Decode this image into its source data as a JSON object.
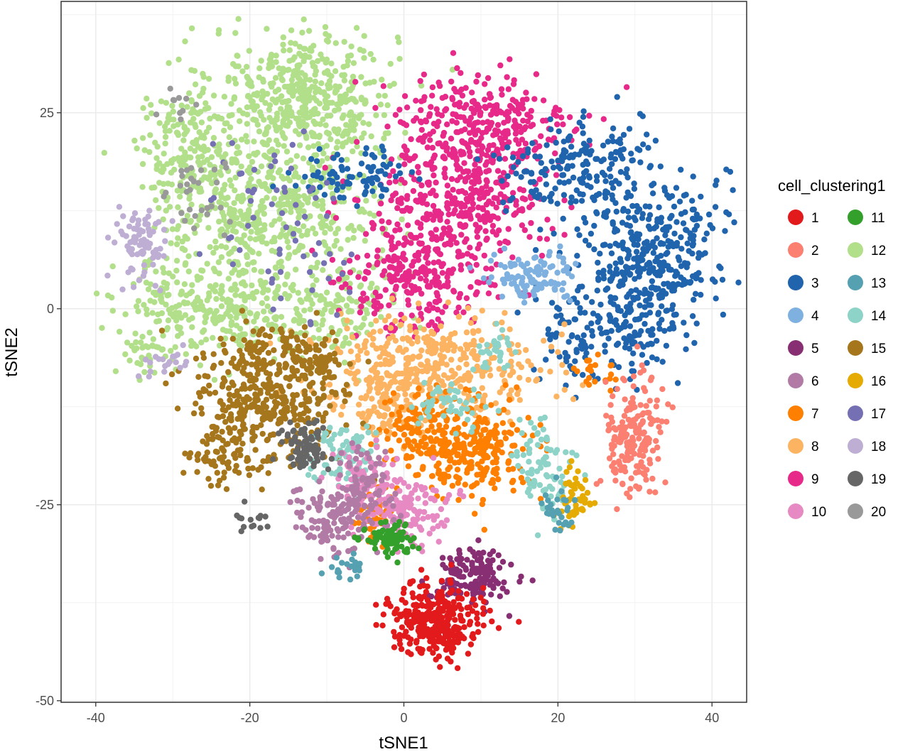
{
  "chart_data": {
    "type": "scatter",
    "xlabel": "tSNE1",
    "ylabel": "tSNE2",
    "xlim": [
      -44.5,
      44.5
    ],
    "ylim": [
      -50.2,
      39.2
    ],
    "x_ticks": [
      -40,
      -20,
      0,
      20,
      40
    ],
    "y_ticks": [
      -50,
      -25,
      0,
      25
    ],
    "grid": true,
    "legend": {
      "title": "cell_clustering1",
      "placement": "right",
      "entries": [
        {
          "label": "1",
          "color": "#e31a1c"
        },
        {
          "label": "2",
          "color": "#fb8072"
        },
        {
          "label": "3",
          "color": "#1f64ad"
        },
        {
          "label": "4",
          "color": "#7fb1e0"
        },
        {
          "label": "5",
          "color": "#882e72"
        },
        {
          "label": "6",
          "color": "#b17ba6"
        },
        {
          "label": "7",
          "color": "#ff7f00"
        },
        {
          "label": "8",
          "color": "#fdb462"
        },
        {
          "label": "9",
          "color": "#e7298a"
        },
        {
          "label": "10",
          "color": "#e78ac3"
        },
        {
          "label": "11",
          "color": "#33a02c"
        },
        {
          "label": "12",
          "color": "#b2df8a"
        },
        {
          "label": "13",
          "color": "#55a1b1"
        },
        {
          "label": "14",
          "color": "#8dd3c7"
        },
        {
          "label": "15",
          "color": "#a6761d"
        },
        {
          "label": "16",
          "color": "#e6ab02"
        },
        {
          "label": "17",
          "color": "#7570b3"
        },
        {
          "label": "18",
          "color": "#beaed4"
        },
        {
          "label": "19",
          "color": "#666666"
        },
        {
          "label": "20",
          "color": "#999999"
        }
      ]
    },
    "clusters": [
      {
        "id": "12",
        "blobs": [
          [
            -13,
            27,
            8,
            6,
            500
          ],
          [
            -28,
            20,
            5,
            5,
            170
          ],
          [
            -22,
            13,
            6,
            6,
            240
          ],
          [
            -12,
            12,
            6,
            6,
            220
          ],
          [
            -22,
            0,
            7,
            4,
            240
          ],
          [
            -8,
            0,
            5,
            4,
            120
          ],
          [
            -32,
            0,
            4,
            4,
            80
          ],
          [
            -34,
            -6,
            2,
            2,
            25
          ]
        ]
      },
      {
        "id": "9",
        "blobs": [
          [
            10,
            23,
            8,
            5,
            330
          ],
          [
            4,
            12,
            7,
            6,
            280
          ],
          [
            2,
            3,
            6,
            4,
            200
          ],
          [
            12,
            14,
            5,
            4,
            100
          ]
        ]
      },
      {
        "id": "3",
        "blobs": [
          [
            32,
            7,
            6,
            7,
            400
          ],
          [
            22,
            18,
            6,
            4,
            180
          ],
          [
            26,
            -3,
            6,
            4,
            150
          ],
          [
            -6,
            17,
            5,
            2,
            80
          ]
        ]
      },
      {
        "id": "4",
        "blobs": [
          [
            17,
            4,
            4,
            2,
            110
          ]
        ]
      },
      {
        "id": "8",
        "blobs": [
          [
            4,
            -7,
            10,
            4,
            400
          ],
          [
            -2,
            -12,
            4,
            3,
            100
          ]
        ]
      },
      {
        "id": "7",
        "blobs": [
          [
            9,
            -18,
            5,
            4,
            250
          ],
          [
            2,
            -16,
            4,
            3,
            120
          ],
          [
            -4,
            -26,
            2,
            3,
            50
          ],
          [
            25,
            -8,
            2,
            2,
            20
          ]
        ]
      },
      {
        "id": "15",
        "blobs": [
          [
            -18,
            -12,
            6,
            5,
            350
          ],
          [
            -11,
            -7,
            3,
            3,
            70
          ],
          [
            -23,
            -19,
            3,
            3,
            60
          ],
          [
            -18,
            -5,
            4,
            2,
            60
          ]
        ]
      },
      {
        "id": "2",
        "blobs": [
          [
            30,
            -16,
            2.5,
            5,
            180
          ]
        ]
      },
      {
        "id": "14",
        "blobs": [
          [
            -8,
            -19,
            3,
            3,
            80
          ],
          [
            18,
            -20,
            2.5,
            4,
            80
          ],
          [
            6,
            -12,
            3,
            2,
            50
          ],
          [
            12,
            -5,
            2,
            2,
            30
          ]
        ]
      },
      {
        "id": "10",
        "blobs": [
          [
            0,
            -26,
            4,
            3,
            150
          ],
          [
            -5,
            -22,
            3,
            3,
            70
          ]
        ]
      },
      {
        "id": "6",
        "blobs": [
          [
            -9,
            -27,
            4,
            3,
            140
          ],
          [
            -5,
            -22,
            3,
            3,
            60
          ]
        ]
      },
      {
        "id": "19",
        "blobs": [
          [
            -13,
            -18,
            2,
            2,
            80
          ],
          [
            -20,
            -27,
            2,
            1,
            15
          ]
        ]
      },
      {
        "id": "11",
        "blobs": [
          [
            -2,
            -29.5,
            2,
            1.5,
            80
          ]
        ]
      },
      {
        "id": "5",
        "blobs": [
          [
            9,
            -34,
            3.5,
            2.5,
            140
          ]
        ]
      },
      {
        "id": "1",
        "blobs": [
          [
            4,
            -40,
            4,
            3,
            320
          ]
        ]
      },
      {
        "id": "16",
        "blobs": [
          [
            22,
            -24,
            1.5,
            2,
            50
          ]
        ]
      },
      {
        "id": "13",
        "blobs": [
          [
            20,
            -26,
            1.5,
            2,
            30
          ],
          [
            -7,
            -33,
            2,
            1,
            20
          ]
        ]
      },
      {
        "id": "18",
        "blobs": [
          [
            -34,
            8,
            2.5,
            3,
            80
          ],
          [
            -31,
            -7,
            2,
            1.5,
            20
          ]
        ]
      },
      {
        "id": "17",
        "blobs": [
          [
            -18,
            14,
            6,
            6,
            40
          ],
          [
            -12,
            5,
            5,
            5,
            25
          ]
        ]
      },
      {
        "id": "20",
        "blobs": [
          [
            -26,
            15,
            3,
            3,
            30
          ],
          [
            -30,
            26,
            2,
            2,
            10
          ]
        ]
      }
    ]
  }
}
